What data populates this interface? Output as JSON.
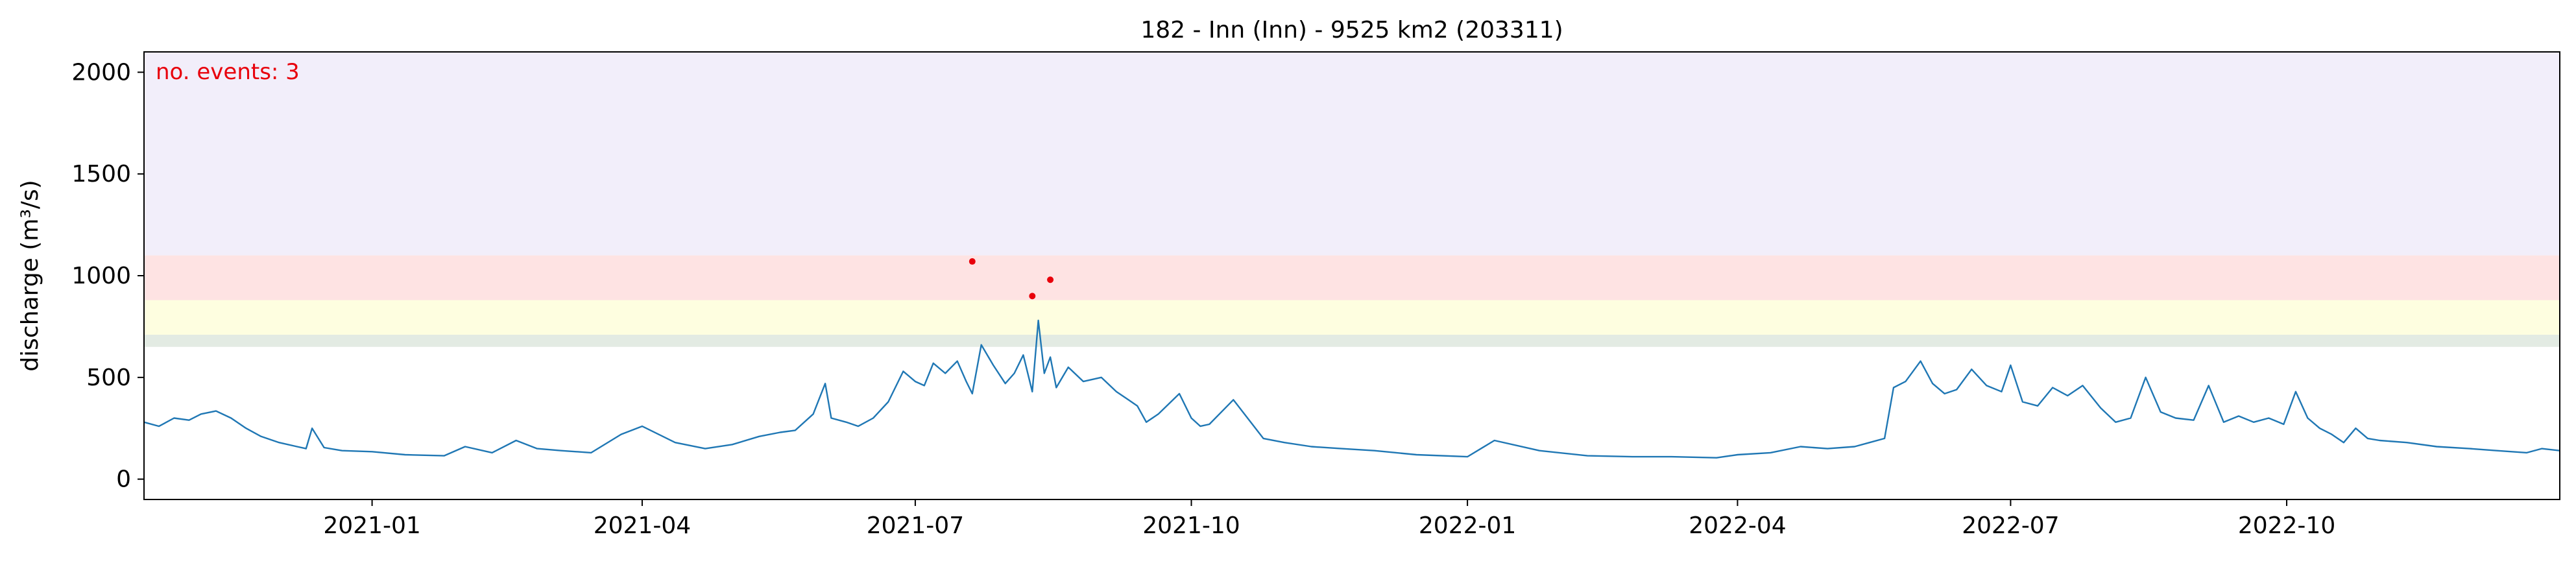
{
  "chart_data": {
    "type": "line",
    "title": "182 - Inn (Inn) - 9525 km2 (203311)",
    "xlabel": "",
    "ylabel": "discharge (m³/s)",
    "xlim": [
      "2020-10-17",
      "2022-12-31"
    ],
    "ylim": [
      -100,
      2100
    ],
    "grid": false,
    "legend": "none",
    "y_ticks": [
      0,
      500,
      1000,
      1500,
      2000
    ],
    "x_ticks": [
      "2021-01-01",
      "2021-04-01",
      "2021-07-01",
      "2021-10-01",
      "2022-01-01",
      "2022-04-01",
      "2022-07-01",
      "2022-10-01"
    ],
    "x_tick_labels": [
      "2021-01",
      "2021-04",
      "2021-07",
      "2021-10",
      "2022-01",
      "2022-04",
      "2022-07",
      "2022-10"
    ],
    "annotation": {
      "text": "no. events: 3",
      "color": "#e8000b"
    },
    "threshold_bands": [
      {
        "from": 650,
        "to": 710,
        "color": "#e3ebe3"
      },
      {
        "from": 710,
        "to": 880,
        "color": "#fefee0"
      },
      {
        "from": 880,
        "to": 1100,
        "color": "#fee3e3"
      },
      {
        "from": 1100,
        "to": 2100,
        "color": "#f2eefa"
      }
    ],
    "series": [
      {
        "color": "#1f77b4",
        "x": [
          "2020-10-17",
          "2020-10-22",
          "2020-10-27",
          "2020-11-01",
          "2020-11-05",
          "2020-11-10",
          "2020-11-15",
          "2020-11-20",
          "2020-11-25",
          "2020-12-01",
          "2020-12-07",
          "2020-12-10",
          "2020-12-12",
          "2020-12-16",
          "2020-12-22",
          "2021-01-01",
          "2021-01-12",
          "2021-01-25",
          "2021-02-01",
          "2021-02-10",
          "2021-02-18",
          "2021-02-25",
          "2021-03-05",
          "2021-03-15",
          "2021-03-25",
          "2021-04-01",
          "2021-04-12",
          "2021-04-22",
          "2021-05-01",
          "2021-05-10",
          "2021-05-17",
          "2021-05-22",
          "2021-05-28",
          "2021-06-01",
          "2021-06-03",
          "2021-06-08",
          "2021-06-12",
          "2021-06-17",
          "2021-06-22",
          "2021-06-27",
          "2021-07-01",
          "2021-07-04",
          "2021-07-07",
          "2021-07-11",
          "2021-07-15",
          "2021-07-18",
          "2021-07-20",
          "2021-07-23",
          "2021-07-27",
          "2021-07-31",
          "2021-08-03",
          "2021-08-06",
          "2021-08-09",
          "2021-08-11",
          "2021-08-13",
          "2021-08-15",
          "2021-08-17",
          "2021-08-21",
          "2021-08-26",
          "2021-09-01",
          "2021-09-06",
          "2021-09-10",
          "2021-09-13",
          "2021-09-16",
          "2021-09-20",
          "2021-09-27",
          "2021-10-01",
          "2021-10-04",
          "2021-10-07",
          "2021-10-15",
          "2021-10-25",
          "2021-11-01",
          "2021-11-10",
          "2021-11-20",
          "2021-12-01",
          "2021-12-15",
          "2022-01-01",
          "2022-01-10",
          "2022-01-25",
          "2022-02-10",
          "2022-02-25",
          "2022-03-10",
          "2022-03-25",
          "2022-04-01",
          "2022-04-12",
          "2022-04-22",
          "2022-05-01",
          "2022-05-10",
          "2022-05-15",
          "2022-05-20",
          "2022-05-23",
          "2022-05-27",
          "2022-06-01",
          "2022-06-05",
          "2022-06-09",
          "2022-06-13",
          "2022-06-18",
          "2022-06-23",
          "2022-06-28",
          "2022-07-01",
          "2022-07-05",
          "2022-07-10",
          "2022-07-15",
          "2022-07-20",
          "2022-07-25",
          "2022-07-31",
          "2022-08-05",
          "2022-08-10",
          "2022-08-15",
          "2022-08-20",
          "2022-08-25",
          "2022-08-31",
          "2022-09-05",
          "2022-09-10",
          "2022-09-15",
          "2022-09-20",
          "2022-09-25",
          "2022-09-30",
          "2022-10-04",
          "2022-10-08",
          "2022-10-12",
          "2022-10-16",
          "2022-10-20",
          "2022-10-24",
          "2022-10-28",
          "2022-11-01",
          "2022-11-10",
          "2022-11-20",
          "2022-12-01",
          "2022-12-10",
          "2022-12-20",
          "2022-12-25",
          "2022-12-31"
        ],
        "y": [
          280,
          260,
          300,
          290,
          320,
          335,
          300,
          250,
          210,
          180,
          160,
          150,
          250,
          155,
          140,
          135,
          120,
          115,
          160,
          130,
          190,
          150,
          140,
          130,
          220,
          260,
          180,
          150,
          170,
          210,
          230,
          240,
          320,
          470,
          300,
          280,
          260,
          300,
          380,
          530,
          480,
          460,
          570,
          520,
          580,
          480,
          420,
          660,
          560,
          470,
          520,
          610,
          430,
          780,
          520,
          600,
          450,
          550,
          480,
          500,
          430,
          390,
          360,
          280,
          320,
          420,
          300,
          260,
          270,
          390,
          200,
          180,
          160,
          150,
          140,
          120,
          110,
          190,
          140,
          115,
          110,
          110,
          105,
          120,
          130,
          160,
          150,
          160,
          180,
          200,
          450,
          480,
          580,
          470,
          420,
          440,
          540,
          460,
          430,
          560,
          380,
          360,
          450,
          410,
          460,
          350,
          280,
          300,
          500,
          330,
          300,
          290,
          460,
          280,
          310,
          280,
          300,
          270,
          430,
          300,
          250,
          220,
          180,
          250,
          200,
          190,
          180,
          160,
          150,
          140,
          130,
          150,
          140
        ],
        "events": [
          {
            "x": "2021-07-20",
            "y": 1070
          },
          {
            "x": "2021-08-09",
            "y": 900
          },
          {
            "x": "2021-08-15",
            "y": 980
          }
        ]
      }
    ]
  }
}
